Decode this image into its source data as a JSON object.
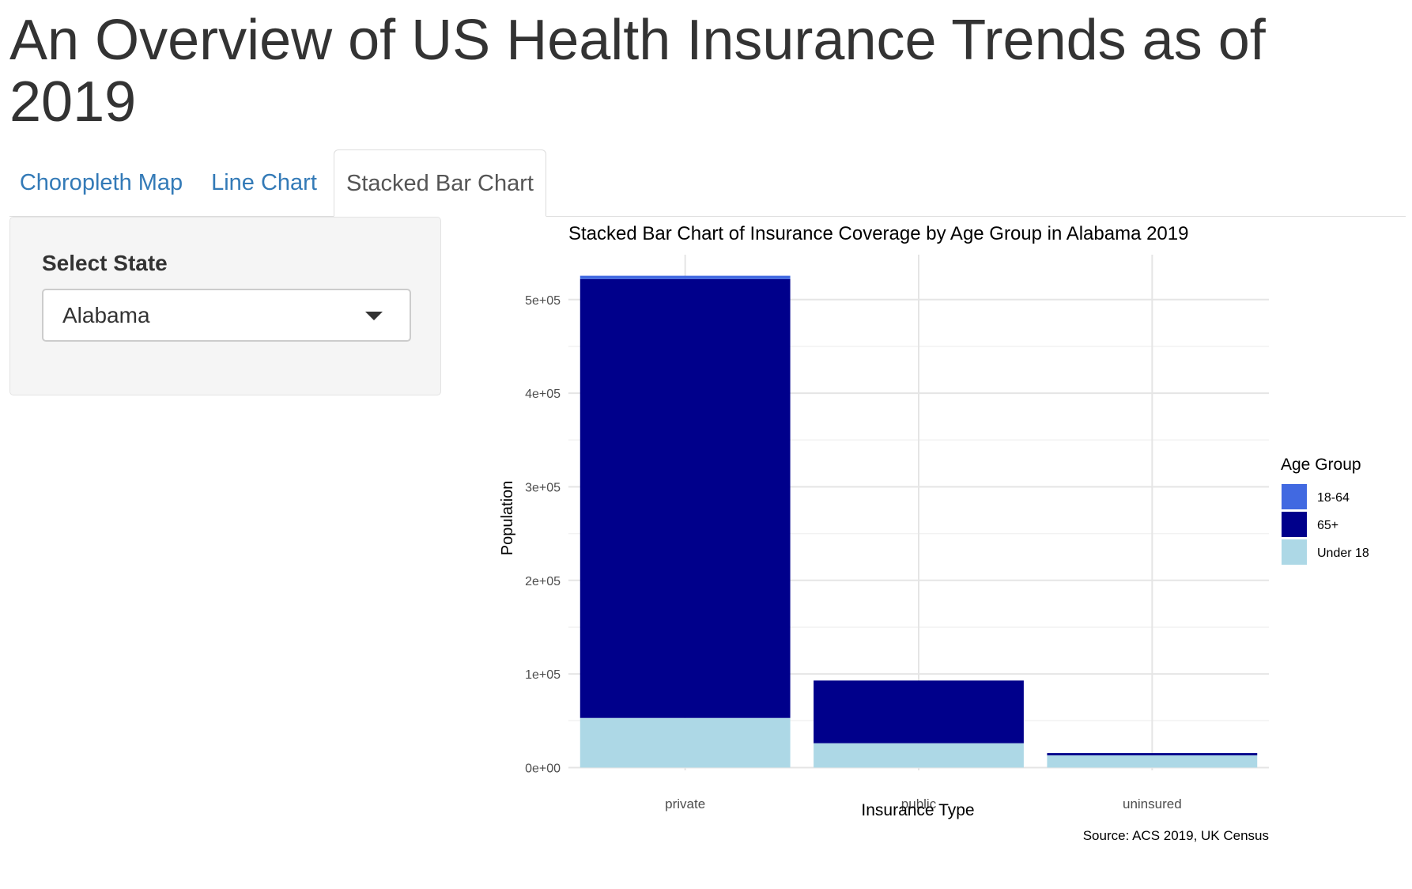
{
  "header": {
    "title": "An Overview of US Health Insurance Trends as of 2019"
  },
  "tabs": [
    {
      "label": "Choropleth Map",
      "active": false
    },
    {
      "label": "Line Chart",
      "active": false
    },
    {
      "label": "Stacked Bar Chart",
      "active": true
    }
  ],
  "sidebar": {
    "select_label": "Select State",
    "selected_state": "Alabama"
  },
  "colors": {
    "18-64": "#4169e1",
    "65+": "#00008b",
    "Under 18": "#add8e6",
    "link": "#337ab7"
  },
  "chart_data": {
    "type": "bar",
    "stacked": true,
    "title": "Stacked Bar Chart of Insurance Coverage by Age Group in Alabama 2019",
    "xlabel": "Insurance Type",
    "ylabel": "Population",
    "caption": "Source: ACS 2019, UK Census",
    "categories": [
      "private",
      "public",
      "uninsured"
    ],
    "series": [
      {
        "name": "Under 18",
        "values": [
          53000,
          26000,
          13000
        ]
      },
      {
        "name": "65+",
        "values": [
          469000,
          67000,
          2500
        ]
      },
      {
        "name": "18-64",
        "values": [
          3500,
          0,
          0
        ]
      }
    ],
    "ylim": [
      -3000,
      548000
    ],
    "yticks": [
      0,
      100000,
      200000,
      300000,
      400000,
      500000
    ],
    "ytick_labels": [
      "0e+00",
      "1e+05",
      "2e+05",
      "3e+05",
      "4e+05",
      "5e+05"
    ],
    "grid": true,
    "legend": {
      "title": "Age Group",
      "position": "right",
      "entries": [
        "18-64",
        "65+",
        "Under 18"
      ]
    }
  }
}
